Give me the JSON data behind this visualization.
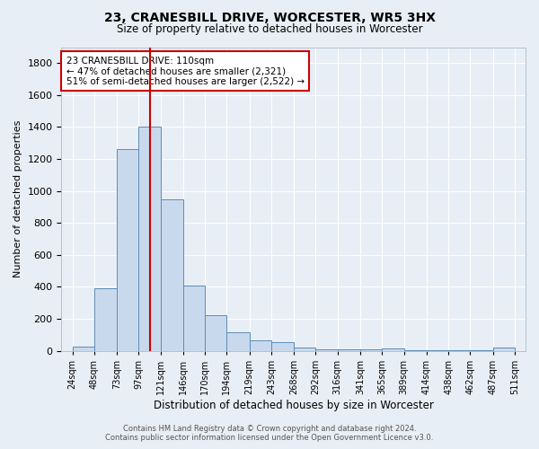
{
  "title": "23, CRANESBILL DRIVE, WORCESTER, WR5 3HX",
  "subtitle": "Size of property relative to detached houses in Worcester",
  "xlabel": "Distribution of detached houses by size in Worcester",
  "ylabel": "Number of detached properties",
  "bar_values": [
    25,
    390,
    1260,
    1400,
    950,
    410,
    225,
    115,
    65,
    55,
    20,
    10,
    10,
    10,
    15,
    5,
    5,
    5,
    5,
    20
  ],
  "x_tick_labels": [
    "24sqm",
    "48sqm",
    "73sqm",
    "97sqm",
    "121sqm",
    "146sqm",
    "170sqm",
    "194sqm",
    "219sqm",
    "243sqm",
    "268sqm",
    "292sqm",
    "316sqm",
    "341sqm",
    "365sqm",
    "389sqm",
    "414sqm",
    "438sqm",
    "462sqm",
    "487sqm",
    "511sqm"
  ],
  "bar_color": "#c9d9ed",
  "bar_edge_color": "#5b8db8",
  "vline_color": "#cc0000",
  "annotation_title": "23 CRANESBILL DRIVE: 110sqm",
  "annotation_line1": "← 47% of detached houses are smaller (2,321)",
  "annotation_line2": "51% of semi-detached houses are larger (2,522) →",
  "annotation_box_facecolor": "#ffffff",
  "annotation_box_edgecolor": "#cc0000",
  "ylim": [
    0,
    1900
  ],
  "yticks": [
    0,
    200,
    400,
    600,
    800,
    1000,
    1200,
    1400,
    1600,
    1800
  ],
  "background_color": "#e8eef5",
  "grid_color": "#ffffff",
  "footer_line1": "Contains HM Land Registry data © Crown copyright and database right 2024.",
  "footer_line2": "Contains public sector information licensed under the Open Government Licence v3.0.",
  "bin_edges": [
    24,
    48,
    73,
    97,
    121,
    146,
    170,
    194,
    219,
    243,
    268,
    292,
    316,
    341,
    365,
    389,
    414,
    438,
    462,
    487,
    511
  ]
}
